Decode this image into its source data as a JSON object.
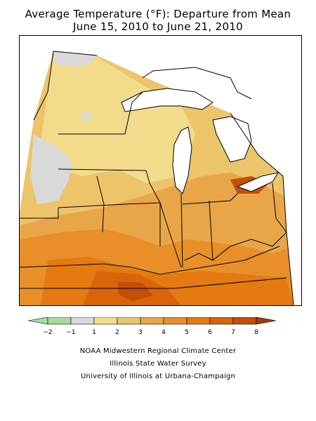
{
  "title": {
    "line1": "Average Temperature (°F): Departure from Mean",
    "line2": "June 15, 2010 to June 21, 2010"
  },
  "legend": {
    "breaks": [
      "−2",
      "−1",
      "1",
      "2",
      "3",
      "4",
      "5",
      "6",
      "7",
      "8"
    ],
    "colors": {
      "below_minus1": "#a6dba0",
      "near_normal": "#d9d9d9",
      "1_to_2": "#f2dc8c",
      "2_to_3": "#ecc46a",
      "3_to_4": "#e9a648",
      "4_to_5": "#e88f2a",
      "5_to_6": "#e57a10",
      "6_to_7": "#d9650a",
      "7_to_8": "#c24f0a",
      "above_8": "#a03c0a"
    }
  },
  "credits": {
    "line1": "NOAA Midwestern Regional Climate Center",
    "line2": "Illinois State Water Survey",
    "line3": "University of Illinois at Urbana-Champaign"
  }
}
